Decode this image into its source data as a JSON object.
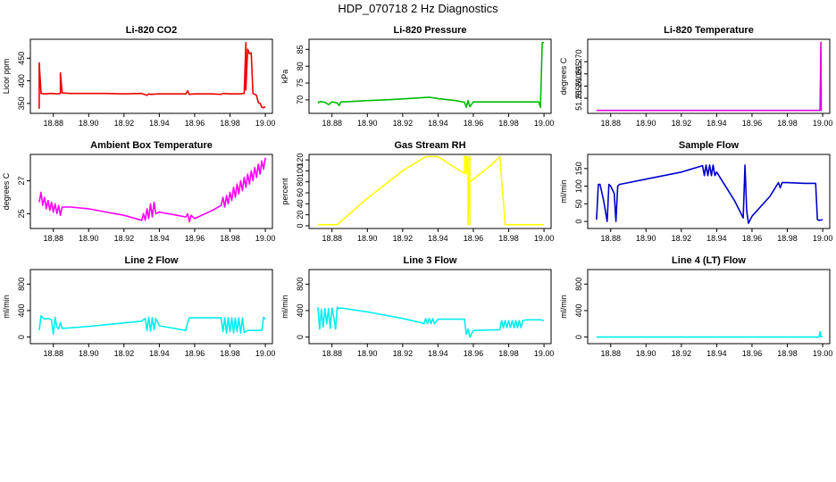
{
  "title": "HDP_070718  2 Hz Diagnostics",
  "chart_data": [
    {
      "type": "line",
      "title": "Li-820 CO2",
      "ylabel": "Licor ppm",
      "color": "#ee0000",
      "xlim": [
        18.867,
        19.004
      ],
      "ylim": [
        328,
        492
      ],
      "xticks": [
        18.88,
        18.9,
        18.92,
        18.94,
        18.96,
        18.98,
        19.0
      ],
      "xtick_labels": [
        "18.88",
        "18.90",
        "18.92",
        "18.94",
        "18.96",
        "18.98",
        "19.00"
      ],
      "yticks": [
        350,
        400,
        450
      ],
      "ytick_labels": [
        "350",
        "400",
        "450"
      ],
      "x": [
        18.872,
        18.872,
        18.873,
        18.873,
        18.875,
        18.879,
        18.882,
        18.884,
        18.884,
        18.885,
        18.89,
        18.9,
        18.91,
        18.92,
        18.93,
        18.933,
        18.934,
        18.935,
        18.94,
        18.95,
        18.955,
        18.956,
        18.957,
        18.96,
        18.97,
        18.975,
        18.976,
        18.98,
        18.985,
        18.988,
        18.989,
        18.989,
        18.99,
        18.991,
        18.992,
        18.993,
        18.994,
        18.995,
        18.996,
        18.997,
        18.998,
        18.999,
        19.0
      ],
      "y": [
        338,
        440,
        375,
        372,
        371,
        372,
        371,
        372,
        418,
        373,
        372,
        372,
        372,
        371,
        372,
        368,
        371,
        370,
        371,
        371,
        371,
        378,
        370,
        371,
        371,
        370,
        372,
        371,
        371,
        372,
        485,
        380,
        470,
        460,
        462,
        372,
        370,
        368,
        352,
        350,
        342,
        340,
        343
      ]
    },
    {
      "type": "line",
      "title": "Li-820 Pressure",
      "ylabel": "kPa",
      "color": "#00bb00",
      "xlim": [
        18.867,
        19.004
      ],
      "ylim": [
        66,
        88
      ],
      "xticks": [
        18.88,
        18.9,
        18.92,
        18.94,
        18.96,
        18.98,
        19.0
      ],
      "xtick_labels": [
        "18.88",
        "18.90",
        "18.92",
        "18.94",
        "18.96",
        "18.98",
        "19.00"
      ],
      "yticks": [
        70,
        75,
        80,
        85
      ],
      "ytick_labels": [
        "70",
        "75",
        "80",
        "85"
      ],
      "x": [
        18.872,
        18.873,
        18.876,
        18.878,
        18.88,
        18.883,
        18.884,
        18.885,
        18.89,
        18.9,
        18.91,
        18.92,
        18.93,
        18.935,
        18.94,
        18.95,
        18.955,
        18.956,
        18.957,
        18.958,
        18.96,
        18.97,
        18.98,
        18.99,
        18.997,
        18.998,
        18.999,
        19.0
      ],
      "y": [
        69,
        69.5,
        69.3,
        68.6,
        69.4,
        69.1,
        68.3,
        69.4,
        69.5,
        69.8,
        70.0,
        70.3,
        70.6,
        70.8,
        70.4,
        69.8,
        69.3,
        67.8,
        69.8,
        68.0,
        69.4,
        69.4,
        69.4,
        69.4,
        69.4,
        67.8,
        87,
        87
      ]
    },
    {
      "type": "line",
      "title": "Li-820 Temperature",
      "ylabel": "degrees C",
      "color": "#dd00dd",
      "xlim": [
        18.867,
        19.004
      ],
      "ylim": [
        51.2488,
        51.2792
      ],
      "xticks": [
        18.88,
        18.9,
        18.92,
        18.94,
        18.96,
        18.98,
        19.0
      ],
      "xtick_labels": [
        "18.88",
        "18.90",
        "18.92",
        "18.94",
        "18.96",
        "18.98",
        "19.00"
      ],
      "yticks": [
        51.255,
        51.26,
        51.265,
        51.27
      ],
      "ytick_labels": [
        "51.255",
        "51.260",
        "51.265",
        "51.270"
      ],
      "x": [
        18.872,
        18.9,
        18.95,
        18.99,
        18.9985,
        18.999,
        18.9992,
        18.9995
      ],
      "y": [
        51.25,
        51.25,
        51.25,
        51.25,
        51.25,
        51.278,
        51.25,
        51.25
      ]
    },
    {
      "type": "line",
      "title": "Ambient Box Temperature",
      "ylabel": "degrees C",
      "color": "#ff00ff",
      "xlim": [
        18.867,
        19.004
      ],
      "ylim": [
        24.1,
        28.6
      ],
      "xticks": [
        18.88,
        18.9,
        18.92,
        18.94,
        18.96,
        18.98,
        19.0
      ],
      "xtick_labels": [
        "18.88",
        "18.90",
        "18.92",
        "18.94",
        "18.96",
        "18.98",
        "19.00"
      ],
      "yticks": [
        25,
        27
      ],
      "ytick_labels": [
        "25",
        "27"
      ],
      "x": [
        18.872,
        18.873,
        18.874,
        18.875,
        18.876,
        18.877,
        18.878,
        18.879,
        18.88,
        18.881,
        18.882,
        18.883,
        18.884,
        18.885,
        18.89,
        18.9,
        18.91,
        18.92,
        18.93,
        18.931,
        18.932,
        18.933,
        18.934,
        18.935,
        18.936,
        18.937,
        18.938,
        18.94,
        18.95,
        18.955,
        18.956,
        18.957,
        18.958,
        18.96,
        18.97,
        18.975,
        18.976,
        18.977,
        18.978,
        18.979,
        18.98,
        18.981,
        18.982,
        18.983,
        18.984,
        18.985,
        18.986,
        18.987,
        18.988,
        18.989,
        18.99,
        18.991,
        18.992,
        18.993,
        18.994,
        18.995,
        18.996,
        18.997,
        18.998,
        18.999,
        19.0
      ],
      "y": [
        25.7,
        26.3,
        25.5,
        26.0,
        25.3,
        25.8,
        25.2,
        25.7,
        25.1,
        25.6,
        25.0,
        25.5,
        24.9,
        25.4,
        25.4,
        25.3,
        25.1,
        24.9,
        24.6,
        25.0,
        24.6,
        25.3,
        24.7,
        25.6,
        24.8,
        25.7,
        25.0,
        25.1,
        24.9,
        24.8,
        25.0,
        24.5,
        24.9,
        24.7,
        25.2,
        25.5,
        26.0,
        25.4,
        26.1,
        25.6,
        26.3,
        25.8,
        26.6,
        26.0,
        26.8,
        26.2,
        27.0,
        26.4,
        27.2,
        26.6,
        27.4,
        26.8,
        27.6,
        27.0,
        27.8,
        27.2,
        28.0,
        27.4,
        28.2,
        27.7,
        28.4
      ]
    },
    {
      "type": "line",
      "title": "Gas Stream RH",
      "ylabel": "percent",
      "color": "#ffff00",
      "xlim": [
        18.867,
        19.004
      ],
      "ylim": [
        -5,
        130
      ],
      "xticks": [
        18.88,
        18.9,
        18.92,
        18.94,
        18.96,
        18.98,
        19.0
      ],
      "xtick_labels": [
        "18.88",
        "18.90",
        "18.92",
        "18.94",
        "18.96",
        "18.98",
        "19.00"
      ],
      "yticks": [
        0,
        20,
        40,
        60,
        80,
        100,
        120
      ],
      "ytick_labels": [
        "0",
        "20",
        "40",
        "60",
        "80",
        "100",
        "120"
      ],
      "x": [
        18.872,
        18.883,
        18.9,
        18.92,
        18.933,
        18.94,
        18.955,
        18.955,
        18.956,
        18.956,
        18.957,
        18.957,
        18.958,
        18.958,
        18.958,
        18.97,
        18.975,
        18.978,
        18.99,
        19.0
      ],
      "y": [
        2,
        2,
        50,
        100,
        126,
        126,
        95,
        126,
        126,
        95,
        126,
        2,
        126,
        2,
        80,
        110,
        126,
        2,
        2,
        2
      ]
    },
    {
      "type": "line",
      "title": "Sample Flow",
      "ylabel": "ml/min",
      "color": "#0000cc",
      "xlim": [
        18.867,
        19.004
      ],
      "ylim": [
        -20,
        190
      ],
      "xticks": [
        18.88,
        18.9,
        18.92,
        18.94,
        18.96,
        18.98,
        19.0
      ],
      "xtick_labels": [
        "18.88",
        "18.90",
        "18.92",
        "18.94",
        "18.96",
        "18.98",
        "19.00"
      ],
      "yticks": [
        0,
        50,
        100,
        150
      ],
      "ytick_labels": [
        "0",
        "50",
        "100",
        "150"
      ],
      "x": [
        18.872,
        18.873,
        18.874,
        18.876,
        18.878,
        18.879,
        18.88,
        18.882,
        18.883,
        18.884,
        18.885,
        18.9,
        18.92,
        18.932,
        18.933,
        18.934,
        18.935,
        18.936,
        18.937,
        18.938,
        18.939,
        18.94,
        18.95,
        18.955,
        18.956,
        18.957,
        18.958,
        18.96,
        18.97,
        18.975,
        18.976,
        18.977,
        18.98,
        18.99,
        18.996,
        18.997,
        18.998,
        19.0
      ],
      "y": [
        5,
        105,
        105,
        60,
        0,
        105,
        100,
        80,
        0,
        100,
        105,
        120,
        140,
        158,
        130,
        160,
        130,
        160,
        130,
        160,
        130,
        140,
        60,
        10,
        160,
        30,
        -5,
        15,
        70,
        110,
        95,
        110,
        110,
        108,
        108,
        5,
        3,
        5
      ]
    },
    {
      "type": "line",
      "title": "Line 2 Flow",
      "ylabel": "ml/min",
      "color": "#00eeee",
      "xlim": [
        18.867,
        19.004
      ],
      "ylim": [
        -100,
        1020
      ],
      "xticks": [
        18.88,
        18.9,
        18.92,
        18.94,
        18.96,
        18.98,
        19.0
      ],
      "xtick_labels": [
        "18.88",
        "18.90",
        "18.92",
        "18.94",
        "18.96",
        "18.98",
        "19.00"
      ],
      "yticks": [
        0,
        400,
        800
      ],
      "ytick_labels": [
        "0",
        "400",
        "800"
      ],
      "x": [
        18.872,
        18.873,
        18.875,
        18.877,
        18.879,
        18.88,
        18.881,
        18.882,
        18.883,
        18.884,
        18.885,
        18.9,
        18.93,
        18.932,
        18.933,
        18.934,
        18.935,
        18.936,
        18.937,
        18.938,
        18.94,
        18.955,
        18.956,
        18.957,
        18.96,
        18.975,
        18.976,
        18.977,
        18.978,
        18.979,
        18.98,
        18.981,
        18.982,
        18.983,
        18.984,
        18.985,
        18.986,
        18.987,
        18.988,
        18.99,
        18.998,
        18.999,
        19.0
      ],
      "y": [
        100,
        320,
        270,
        280,
        260,
        40,
        300,
        150,
        120,
        220,
        130,
        160,
        240,
        280,
        100,
        300,
        90,
        290,
        110,
        280,
        170,
        100,
        220,
        290,
        290,
        290,
        80,
        290,
        60,
        290,
        80,
        290,
        60,
        290,
        80,
        290,
        60,
        290,
        70,
        100,
        100,
        300,
        270
      ]
    },
    {
      "type": "line",
      "title": "Line 3 Flow",
      "ylabel": "ml/min",
      "color": "#00eeee",
      "xlim": [
        18.867,
        19.004
      ],
      "ylim": [
        -100,
        1020
      ],
      "xticks": [
        18.88,
        18.9,
        18.92,
        18.94,
        18.96,
        18.98,
        19.0
      ],
      "xtick_labels": [
        "18.88",
        "18.90",
        "18.92",
        "18.94",
        "18.96",
        "18.98",
        "19.00"
      ],
      "yticks": [
        0,
        400,
        800
      ],
      "ytick_labels": [
        "0",
        "400",
        "800"
      ],
      "x": [
        18.872,
        18.873,
        18.874,
        18.875,
        18.876,
        18.877,
        18.878,
        18.879,
        18.88,
        18.881,
        18.882,
        18.883,
        18.884,
        18.885,
        18.89,
        18.9,
        18.92,
        18.93,
        18.932,
        18.933,
        18.934,
        18.935,
        18.936,
        18.937,
        18.938,
        18.94,
        18.95,
        18.955,
        18.956,
        18.957,
        18.958,
        18.96,
        18.975,
        18.976,
        18.977,
        18.978,
        18.979,
        18.98,
        18.981,
        18.982,
        18.983,
        18.984,
        18.985,
        18.986,
        18.987,
        18.988,
        18.99,
        18.998,
        19.0
      ],
      "y": [
        450,
        120,
        420,
        150,
        430,
        200,
        430,
        130,
        440,
        300,
        120,
        450,
        430,
        440,
        420,
        380,
        280,
        220,
        200,
        280,
        200,
        280,
        200,
        280,
        200,
        270,
        270,
        270,
        40,
        120,
        0,
        100,
        110,
        250,
        140,
        250,
        140,
        250,
        140,
        250,
        140,
        250,
        140,
        250,
        140,
        250,
        260,
        260,
        250
      ]
    },
    {
      "type": "line",
      "title": "Line 4 (LT) Flow",
      "ylabel": "ml/min",
      "color": "#00eeee",
      "xlim": [
        18.867,
        19.004
      ],
      "ylim": [
        -100,
        1020
      ],
      "xticks": [
        18.88,
        18.9,
        18.92,
        18.94,
        18.96,
        18.98,
        19.0
      ],
      "xtick_labels": [
        "18.88",
        "18.90",
        "18.92",
        "18.94",
        "18.96",
        "18.98",
        "19.00"
      ],
      "yticks": [
        0,
        400,
        800
      ],
      "ytick_labels": [
        "0",
        "400",
        "800"
      ],
      "x": [
        18.872,
        18.9,
        18.95,
        18.99,
        18.998,
        18.9985,
        18.999,
        19.0
      ],
      "y": [
        0,
        0,
        0,
        0,
        0,
        80,
        5,
        5
      ]
    }
  ]
}
